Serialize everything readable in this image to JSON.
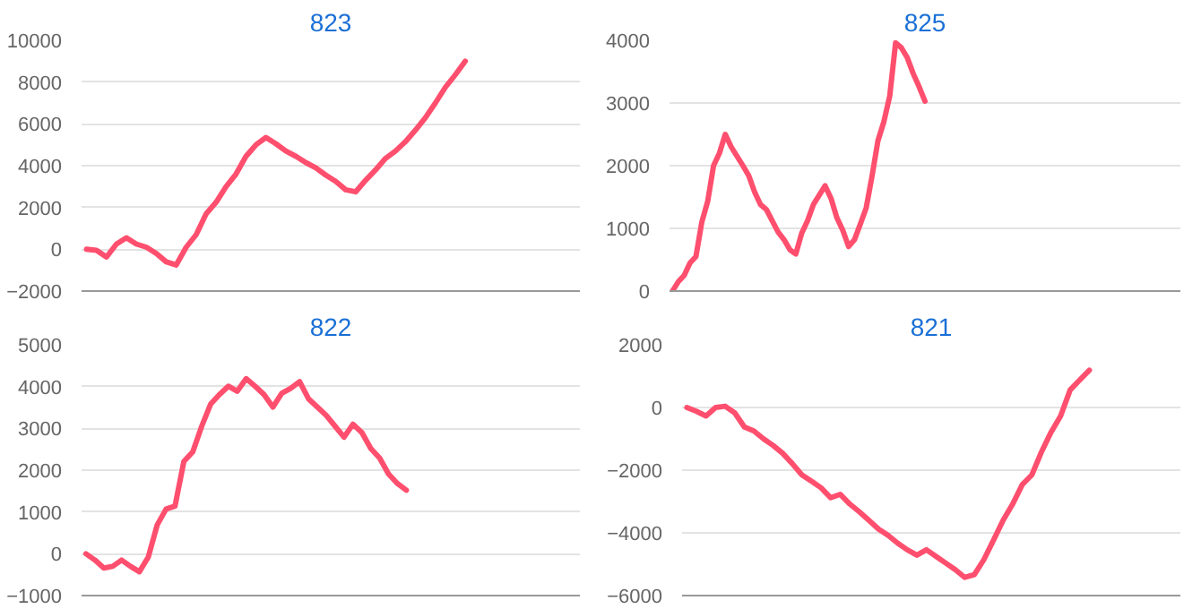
{
  "chart_data": [
    {
      "type": "line",
      "title": "823",
      "categories": [
        null,
        null,
        null,
        null,
        null,
        null,
        null,
        null,
        null,
        null,
        null,
        null,
        null,
        null,
        null,
        null,
        null,
        null,
        null,
        null,
        null,
        null,
        null,
        null,
        null,
        null,
        null,
        null,
        null,
        null,
        null,
        null,
        null,
        null,
        null,
        null,
        null,
        null,
        null,
        null,
        null,
        null,
        null,
        null,
        null,
        null,
        null,
        null,
        null,
        null
      ],
      "series": [
        {
          "color": "#ff4f6e",
          "values": [
            0,
            -50,
            -370,
            250,
            550,
            250,
            100,
            -200,
            -600,
            -750,
            100,
            700,
            1700,
            2250,
            3000,
            3600,
            4450,
            5000,
            5350,
            5050,
            4700,
            4450,
            4150,
            3900,
            3550,
            3250,
            2850,
            2750,
            3300,
            3800,
            4350,
            4700,
            5150,
            5700,
            6300,
            7000,
            7750,
            8350,
            9000,
            null,
            null,
            null,
            null,
            null,
            null,
            null,
            null,
            null,
            null,
            null
          ]
        }
      ],
      "ylim": [
        -2000,
        10000
      ],
      "yticks": [
        -2000,
        0,
        2000,
        4000,
        6000,
        8000,
        10000
      ],
      "grid": "y"
    },
    {
      "type": "line",
      "title": "825",
      "categories": [
        null,
        null,
        null,
        null,
        null,
        null,
        null,
        null,
        null,
        null,
        null,
        null,
        null,
        null,
        null,
        null,
        null,
        null,
        null,
        null,
        null,
        null,
        null,
        null,
        null,
        null,
        null,
        null,
        null,
        null,
        null,
        null,
        null,
        null,
        null,
        null,
        null,
        null,
        null,
        null,
        null,
        null,
        null,
        null,
        null,
        null,
        null,
        null,
        null,
        null,
        null,
        null,
        null,
        null,
        null,
        null,
        null,
        null,
        null,
        null,
        null,
        null,
        null,
        null,
        null,
        null,
        null,
        null,
        null,
        null,
        null,
        null,
        null,
        null,
        null,
        null,
        null,
        null,
        null,
        null,
        null,
        null,
        null,
        null,
        null,
        null,
        null
      ],
      "series": [
        {
          "color": "#ff4f6e",
          "values": [
            0,
            150,
            250,
            450,
            550,
            1100,
            1430,
            2000,
            2200,
            2500,
            2300,
            2150,
            2000,
            1840,
            1580,
            1380,
            1300,
            1120,
            940,
            820,
            660,
            590,
            920,
            1120,
            1380,
            1530,
            1680,
            1480,
            1170,
            970,
            710,
            820,
            1070,
            1330,
            1840,
            2400,
            2700,
            3110,
            3960,
            3880,
            3720,
            3470,
            3260,
            3030,
            null,
            null,
            null,
            null,
            null,
            null,
            null,
            null,
            null,
            null,
            null,
            null,
            null,
            null,
            null,
            null,
            null,
            null,
            null,
            null,
            null,
            null,
            null,
            null,
            null,
            null,
            null,
            null,
            null,
            null,
            null,
            null,
            null,
            null,
            null,
            null,
            null,
            null,
            null,
            null,
            null,
            null,
            null
          ]
        }
      ],
      "ylim": [
        0,
        4000
      ],
      "yticks": [
        0,
        1000,
        2000,
        3000,
        4000
      ],
      "grid": "y"
    },
    {
      "type": "line",
      "title": "822",
      "categories": [
        null,
        null,
        null,
        null,
        null,
        null,
        null,
        null,
        null,
        null,
        null,
        null,
        null,
        null,
        null,
        null,
        null,
        null,
        null,
        null,
        null,
        null,
        null,
        null,
        null,
        null,
        null,
        null,
        null,
        null,
        null,
        null,
        null,
        null,
        null,
        null,
        null,
        null,
        null,
        null,
        null,
        null,
        null,
        null,
        null,
        null,
        null,
        null,
        null,
        null,
        null,
        null,
        null,
        null,
        null,
        null
      ],
      "series": [
        {
          "color": "#ff4f6e",
          "values": [
            0,
            -150,
            -340,
            -300,
            -150,
            -300,
            -430,
            -80,
            690,
            1070,
            1140,
            2210,
            2440,
            3050,
            3580,
            3810,
            4010,
            3890,
            4190,
            4010,
            3810,
            3510,
            3840,
            3960,
            4120,
            3710,
            3510,
            3310,
            3050,
            2790,
            3100,
            2900,
            2520,
            2290,
            1910,
            1680,
            1520,
            null,
            null,
            null,
            null,
            null,
            null,
            null,
            null,
            null,
            null,
            null,
            null,
            null,
            null,
            null,
            null,
            null,
            null,
            null
          ]
        }
      ],
      "ylim": [
        -1000,
        5000
      ],
      "yticks": [
        -1000,
        0,
        1000,
        2000,
        3000,
        4000,
        5000
      ],
      "grid": "y"
    },
    {
      "type": "line",
      "title": "821",
      "categories": [
        null,
        null,
        null,
        null,
        null,
        null,
        null,
        null,
        null,
        null,
        null,
        null,
        null,
        null,
        null,
        null,
        null,
        null,
        null,
        null,
        null,
        null,
        null,
        null,
        null,
        null,
        null,
        null,
        null,
        null,
        null,
        null,
        null,
        null,
        null,
        null,
        null,
        null,
        null,
        null,
        null,
        null,
        null,
        null,
        null,
        null,
        null,
        null,
        null,
        null,
        null,
        null
      ],
      "series": [
        {
          "color": "#ff4f6e",
          "values": [
            0,
            -120,
            -270,
            0,
            40,
            -170,
            -620,
            -750,
            -1000,
            -1210,
            -1460,
            -1790,
            -2150,
            -2350,
            -2560,
            -2880,
            -2770,
            -3080,
            -3330,
            -3600,
            -3880,
            -4080,
            -4330,
            -4540,
            -4710,
            -4540,
            -4750,
            -4960,
            -5170,
            -5420,
            -5330,
            -4850,
            -4230,
            -3600,
            -3080,
            -2460,
            -2150,
            -1420,
            -790,
            -270,
            560,
            880,
            1190,
            null,
            null,
            null,
            null,
            null,
            null,
            null,
            null,
            null
          ]
        }
      ],
      "ylim": [
        -6000,
        2000
      ],
      "yticks": [
        -6000,
        -4000,
        -2000,
        0,
        2000
      ],
      "grid": "y"
    }
  ]
}
